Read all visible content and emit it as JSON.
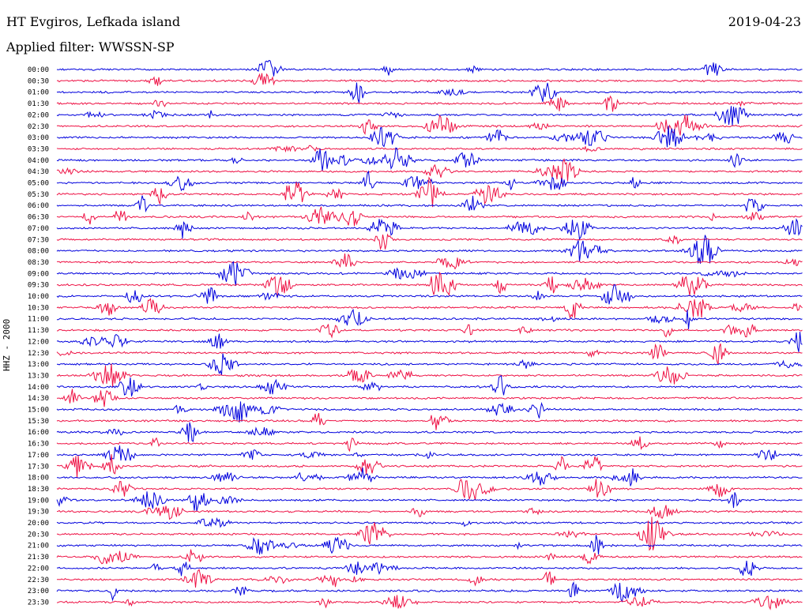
{
  "header": {
    "station": "HT Evgiros, Lefkada island",
    "date": "2019-04-23",
    "filter": "Applied filter: WWSSN-SP"
  },
  "chart_data": {
    "type": "line",
    "ylabel": "HHZ - 2000",
    "hour_labels": [
      "00:00",
      "00:30",
      "01:00",
      "01:30",
      "02:00",
      "02:30",
      "03:00",
      "03:30",
      "04:00",
      "04:30",
      "05:00",
      "05:30",
      "06:00",
      "06:30",
      "07:00",
      "07:30",
      "08:00",
      "08:30",
      "09:00",
      "09:30",
      "10:00",
      "10:30",
      "11:00",
      "11:30",
      "12:00",
      "12:30",
      "13:00",
      "13:30",
      "14:00",
      "14:30",
      "15:00",
      "15:30",
      "16:00",
      "16:30",
      "17:00",
      "17:30",
      "18:00",
      "18:30",
      "19:00",
      "19:30",
      "20:00",
      "20:30",
      "21:00",
      "21:30",
      "22:00",
      "22:30",
      "23:00",
      "23:30"
    ],
    "colors": [
      "#0000dd",
      "#ee1144"
    ]
  }
}
